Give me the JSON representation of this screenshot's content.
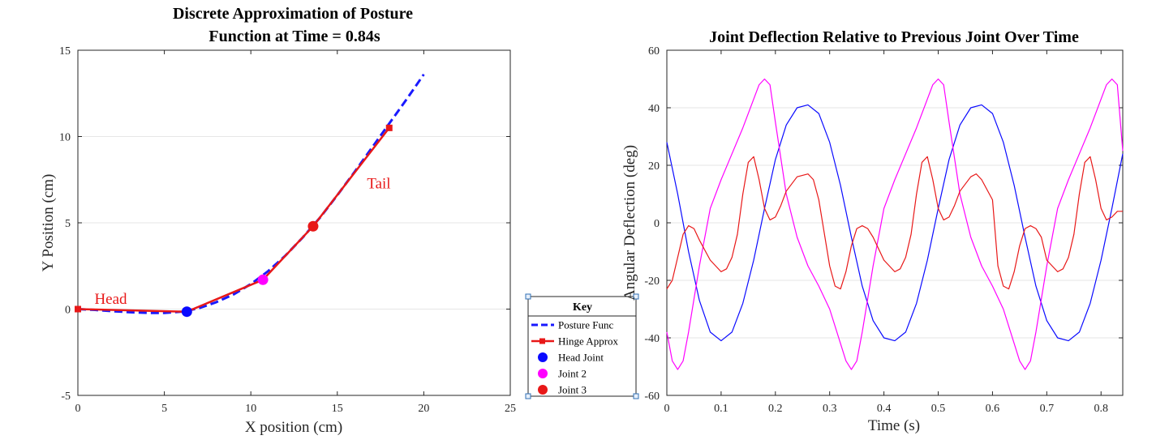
{
  "chart_data": [
    {
      "type": "line",
      "title": [
        "Discrete Approximation of Posture",
        "Function at Time = 0.84s"
      ],
      "xlabel": "X position (cm)",
      "ylabel": "Y Position (cm)",
      "xlim": [
        0,
        25
      ],
      "ylim": [
        -5,
        15
      ],
      "xticks": [
        0,
        5,
        10,
        15,
        20,
        25
      ],
      "yticks": [
        -5,
        0,
        5,
        10,
        15
      ],
      "ygrid": true,
      "series": [
        {
          "name": "Posture Func",
          "style": "dashed",
          "color": "#1a1aff",
          "x": [
            0,
            1,
            2,
            3,
            4,
            5,
            6,
            7,
            8,
            9,
            10,
            11,
            12,
            13,
            14,
            15,
            16,
            17,
            18,
            19,
            20
          ],
          "y": [
            0,
            -0.05,
            -0.12,
            -0.18,
            -0.22,
            -0.22,
            -0.15,
            0.05,
            0.4,
            0.85,
            1.45,
            2.2,
            3.1,
            4.15,
            5.3,
            6.6,
            7.95,
            9.35,
            10.75,
            12.15,
            13.6
          ]
        },
        {
          "name": "Hinge Approx",
          "style": "solid-square-markers",
          "color": "#e81818",
          "x": [
            0,
            6.3,
            10.7,
            13.6,
            18.0
          ],
          "y": [
            0,
            -0.15,
            1.7,
            4.8,
            10.5
          ]
        },
        {
          "name": "Head Joint",
          "style": "marker",
          "color": "#0a0aff",
          "x": [
            6.3
          ],
          "y": [
            -0.15
          ]
        },
        {
          "name": "Joint 2",
          "style": "marker",
          "color": "#ff00ff",
          "x": [
            10.7
          ],
          "y": [
            1.7
          ]
        },
        {
          "name": "Joint 3",
          "style": "marker",
          "color": "#e81818",
          "x": [
            13.6
          ],
          "y": [
            4.8
          ]
        }
      ],
      "annotations": [
        {
          "text": "Head",
          "x": 1.9,
          "y": 0.3
        },
        {
          "text": "Tail",
          "x": 17.4,
          "y": 7.0
        }
      ]
    },
    {
      "type": "line",
      "title": "Joint Deflection Relative to Previous Joint Over Time",
      "xlabel": "Time (s)",
      "ylabel": "Angular Deflection (deg)",
      "xlim": [
        0,
        0.84
      ],
      "ylim": [
        -60,
        60
      ],
      "xticks": [
        0,
        0.1,
        0.2,
        0.3,
        0.4,
        0.5,
        0.6,
        0.7,
        0.8
      ],
      "yticks": [
        -60,
        -40,
        -20,
        0,
        20,
        40,
        60
      ],
      "ygrid": true,
      "series": [
        {
          "color": "#0a0aff",
          "x": [
            0,
            0.02,
            0.04,
            0.06,
            0.08,
            0.1,
            0.12,
            0.14,
            0.16,
            0.18,
            0.2,
            0.22,
            0.24,
            0.26,
            0.28,
            0.3,
            0.32,
            0.34,
            0.36,
            0.38,
            0.4,
            0.42,
            0.44,
            0.46,
            0.48,
            0.5,
            0.52,
            0.54,
            0.56,
            0.58,
            0.6,
            0.62,
            0.64,
            0.66,
            0.68,
            0.7,
            0.72,
            0.74,
            0.76,
            0.78,
            0.8,
            0.82,
            0.84
          ],
          "y": [
            28,
            10,
            -10,
            -27,
            -38,
            -41,
            -38,
            -28,
            -13,
            5,
            22,
            34,
            40,
            41,
            38,
            28,
            13,
            -5,
            -22,
            -34,
            -40,
            -41,
            -38,
            -28,
            -13,
            5,
            22,
            34,
            40,
            41,
            38,
            28,
            13,
            -5,
            -22,
            -34,
            -40,
            -41,
            -38,
            -28,
            -13,
            5,
            24
          ]
        },
        {
          "color": "#ff00ff",
          "x": [
            0,
            0.01,
            0.02,
            0.03,
            0.04,
            0.06,
            0.08,
            0.1,
            0.12,
            0.14,
            0.16,
            0.17,
            0.18,
            0.19,
            0.2,
            0.22,
            0.24,
            0.26,
            0.28,
            0.3,
            0.32,
            0.33,
            0.34,
            0.35,
            0.36,
            0.38,
            0.4,
            0.42,
            0.44,
            0.46,
            0.48,
            0.49,
            0.5,
            0.51,
            0.52,
            0.54,
            0.56,
            0.58,
            0.6,
            0.62,
            0.64,
            0.65,
            0.66,
            0.67,
            0.68,
            0.7,
            0.72,
            0.74,
            0.76,
            0.78,
            0.8,
            0.81,
            0.82,
            0.83,
            0.84
          ],
          "y": [
            -38,
            -48,
            -51,
            -48,
            -38,
            -15,
            5,
            15,
            24,
            33,
            43,
            48,
            50,
            48,
            35,
            10,
            -5,
            -15,
            -22,
            -30,
            -42,
            -48,
            -51,
            -48,
            -38,
            -15,
            5,
            15,
            24,
            33,
            43,
            48,
            50,
            48,
            35,
            10,
            -5,
            -15,
            -22,
            -30,
            -42,
            -48,
            -51,
            -48,
            -38,
            -15,
            5,
            15,
            24,
            33,
            43,
            48,
            50,
            48,
            25
          ]
        },
        {
          "color": "#e81818",
          "x": [
            0,
            0.01,
            0.02,
            0.03,
            0.04,
            0.05,
            0.06,
            0.08,
            0.1,
            0.11,
            0.12,
            0.13,
            0.14,
            0.15,
            0.16,
            0.17,
            0.18,
            0.19,
            0.2,
            0.21,
            0.22,
            0.24,
            0.26,
            0.27,
            0.28,
            0.3,
            0.31,
            0.32,
            0.33,
            0.34,
            0.35,
            0.36,
            0.37,
            0.38,
            0.4,
            0.42,
            0.43,
            0.44,
            0.45,
            0.46,
            0.47,
            0.48,
            0.49,
            0.5,
            0.51,
            0.52,
            0.53,
            0.54,
            0.56,
            0.57,
            0.58,
            0.6,
            0.61,
            0.62,
            0.63,
            0.64,
            0.65,
            0.66,
            0.67,
            0.68,
            0.69,
            0.7,
            0.72,
            0.73,
            0.74,
            0.75,
            0.76,
            0.77,
            0.78,
            0.79,
            0.8,
            0.81,
            0.82,
            0.83,
            0.84
          ],
          "y": [
            -23,
            -20,
            -12,
            -4,
            -1,
            -2,
            -6,
            -13,
            -17,
            -16,
            -12,
            -4,
            10,
            21,
            23,
            15,
            5,
            1,
            2,
            6,
            11,
            16,
            17,
            15,
            8,
            -15,
            -22,
            -23,
            -17,
            -8,
            -2,
            -1,
            -2,
            -5,
            -13,
            -17,
            -16,
            -12,
            -4,
            10,
            21,
            23,
            15,
            5,
            1,
            2,
            6,
            11,
            16,
            17,
            15,
            8,
            -15,
            -22,
            -23,
            -17,
            -8,
            -2,
            -1,
            -2,
            -5,
            -13,
            -17,
            -16,
            -12,
            -4,
            10,
            21,
            23,
            15,
            5,
            1,
            2,
            4,
            4
          ]
        }
      ]
    }
  ],
  "legend": {
    "title": "Key",
    "items": [
      {
        "label": "Posture Func",
        "color": "#1a1aff",
        "kind": "dashed"
      },
      {
        "label": "Hinge Approx",
        "color": "#e81818",
        "kind": "line-marker"
      },
      {
        "label": "Head Joint",
        "color": "#0a0aff",
        "kind": "dot"
      },
      {
        "label": "Joint 2",
        "color": "#ff00ff",
        "kind": "dot"
      },
      {
        "label": "Joint 3",
        "color": "#e81818",
        "kind": "dot"
      }
    ]
  }
}
